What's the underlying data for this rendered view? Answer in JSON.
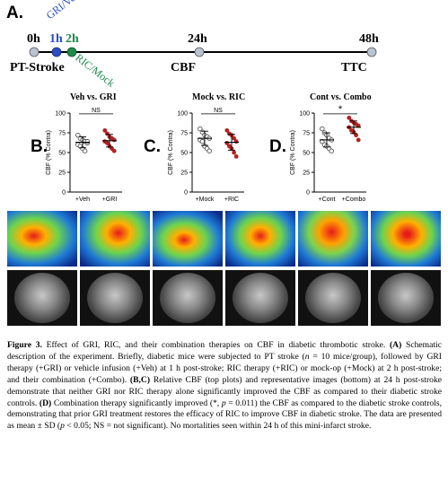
{
  "timeline": {
    "panel_letter": "A.",
    "labels": {
      "t0": "0h",
      "t1": "1h",
      "t2": "2h",
      "t24": "24h",
      "t48": "48h",
      "pt_stroke": "PT-Stroke",
      "cbf": "CBF",
      "ttc": "TTC",
      "gri_veh": "GRI/Veh",
      "ric_mock": "RIC/Mock"
    },
    "colors": {
      "gri_veh": "#2a4fc4",
      "ric_mock": "#1f8a4c",
      "point_grey": "#b9c4d3"
    }
  },
  "panels": [
    {
      "letter": "B.",
      "title": "Veh vs. GRI",
      "sig": "NS",
      "ylabel": "CBF (% Contra)",
      "ticks": [
        "100",
        "75",
        "50",
        "25",
        "0"
      ],
      "groups": [
        "+Veh",
        "+GRI"
      ]
    },
    {
      "letter": "C.",
      "title": "Mock vs. RIC",
      "sig": "NS",
      "ylabel": "CBF (% Contra)",
      "ticks": [
        "100",
        "75",
        "50",
        "25",
        "0"
      ],
      "groups": [
        "+Mock",
        "+RIC"
      ]
    },
    {
      "letter": "D.",
      "title": "Cont vs. Combo",
      "sig": "*",
      "ylabel": "CBF (% Contra)",
      "ticks": [
        "100",
        "75",
        "50",
        "25",
        "0"
      ],
      "groups": [
        "+Cont",
        "+Combo"
      ]
    }
  ],
  "chart_data": [
    {
      "type": "scatter",
      "title": "Veh vs. GRI",
      "ylabel": "CBF (% Contra)",
      "ylim": [
        0,
        100
      ],
      "categories": [
        "+Veh",
        "+GRI"
      ],
      "series": [
        {
          "name": "+Veh",
          "values": [
            72,
            68,
            66,
            64,
            62,
            60,
            58,
            55,
            52,
            64
          ],
          "mean": 63,
          "sd": 7
        },
        {
          "name": "+GRI",
          "values": [
            78,
            74,
            70,
            68,
            66,
            64,
            62,
            58,
            55,
            52
          ],
          "mean": 65,
          "sd": 8
        }
      ],
      "significance": "NS"
    },
    {
      "type": "scatter",
      "title": "Mock vs. RIC",
      "ylabel": "CBF (% Contra)",
      "ylim": [
        0,
        100
      ],
      "categories": [
        "+Mock",
        "+RIC"
      ],
      "series": [
        {
          "name": "+Mock",
          "values": [
            80,
            76,
            72,
            70,
            68,
            66,
            64,
            58,
            55,
            52
          ],
          "mean": 68,
          "sd": 9
        },
        {
          "name": "+RIC",
          "values": [
            78,
            74,
            72,
            68,
            64,
            62,
            58,
            55,
            50,
            45
          ],
          "mean": 63,
          "sd": 10
        }
      ],
      "significance": "NS"
    },
    {
      "type": "scatter",
      "title": "Cont vs. Combo",
      "ylabel": "CBF (% Contra)",
      "ylim": [
        0,
        100
      ],
      "categories": [
        "+Cont",
        "+Combo"
      ],
      "series": [
        {
          "name": "+Cont",
          "values": [
            80,
            75,
            72,
            68,
            66,
            64,
            60,
            58,
            55,
            52
          ],
          "mean": 66,
          "sd": 9
        },
        {
          "name": "+Combo",
          "values": [
            94,
            90,
            88,
            86,
            84,
            82,
            78,
            76,
            72,
            66
          ],
          "mean": 82,
          "sd": 8
        }
      ],
      "significance": "*"
    }
  ],
  "caption": {
    "figure_label": "Figure 3.",
    "title": " Effect of GRI, RIC, and their combination therapies on CBF in diabetic thrombotic stroke.",
    "a_label": "(A)",
    "a_text1": " Schematic description of the experiment.  Briefly, diabetic mice were subjected to PT stroke (",
    "n_italic": "n",
    "a_text2": " = 10 mice/group), followed by GRI therapy (+GRI) or vehicle infusion (+Veh) at 1 h post-stroke; RIC therapy (+RIC) or mock-op (+Mock) at 2 h post-stroke; and their combination (+Combo). ",
    "bc_label": "(B,C)",
    "bc_text": " Relative CBF (top plots) and representative images (bottom) at 24 h post-stroke demonstrate that neither GRI nor RIC therapy alone significantly improved the CBF as compared to their diabetic stroke controls. ",
    "d_label": "(D)",
    "d_text1": " Combination therapy significantly improved (*, ",
    "p_italic": "p",
    "d_text2": " = 0.011) the CBF as compared to the diabetic stroke controls, demonstrating that prior GRI treatment restores the efficacy of RIC to improve CBF in diabetic stroke. The data are presented as mean ± SD (",
    "p_italic2": "p",
    "d_text3": " < 0.05; NS = not significant). No mortalities seen within 24 h of this mini-infarct stroke."
  }
}
